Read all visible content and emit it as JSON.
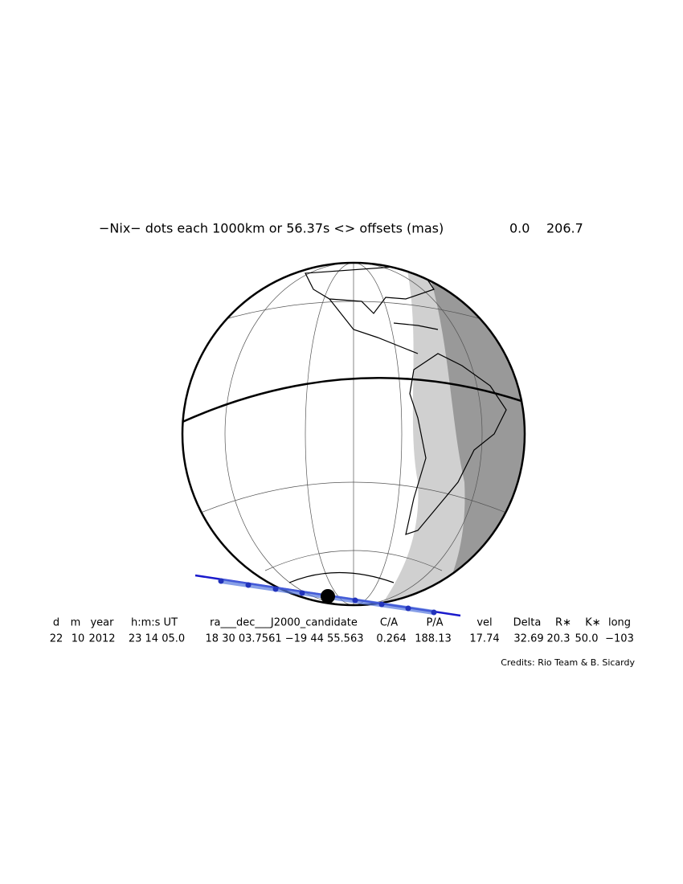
{
  "header": {
    "title": "−Nix− dots each 1000km or 56.37s <> offsets (mas)",
    "offsets": [
      "0.0",
      "206.7"
    ]
  },
  "table": {
    "header": [
      "d",
      "m",
      "year",
      "h:m:s UT",
      "ra___dec___J2000_candidate",
      "C/A",
      "P/A",
      "vel",
      "Delta",
      "R∗",
      "K∗",
      "long"
    ],
    "values": [
      "22",
      "10",
      "2012",
      "23 14 05.0",
      "18 30 03.7561 −19 44 55.563",
      "0.264",
      "188.13",
      "17.74",
      "32.69",
      "20.3",
      "50.0",
      "−103"
    ]
  },
  "credits": "Credits: Rio Team & B. Sicardy"
}
